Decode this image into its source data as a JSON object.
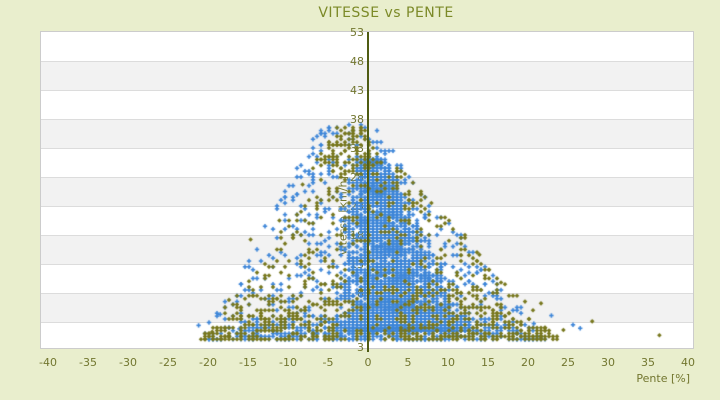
{
  "page": {
    "background_color": "#e9eecd"
  },
  "chart_data": {
    "type": "scatter",
    "title": "VITESSE vs PENTE",
    "xlabel": "Pente [%]",
    "ylabel": "Vitesse [km/h]",
    "legend": "none",
    "x_ticks": [
      -40,
      -35,
      -30,
      -25,
      -20,
      -15,
      -10,
      -5,
      0,
      5,
      10,
      15,
      20,
      25,
      30,
      35,
      40
    ],
    "y_ticks": [
      53,
      48,
      43,
      38,
      33,
      28,
      23,
      18,
      13,
      8,
      3
    ],
    "x_range": [
      -41,
      40.5
    ],
    "y_range": [
      -1.5,
      53
    ],
    "grid": {
      "band_colors": [
        "#ffffff",
        "#f2f2f2"
      ],
      "line_color": "#dcdcdc",
      "border_color": "#cccccc",
      "bottom_label_at_edge": true
    },
    "colors": {
      "title_text": "#7c8a28",
      "tick_text": "#72762f",
      "axis_title_text": "#72762f",
      "zero_line": "#4f5c13"
    },
    "series": [
      {
        "id": "serie-bleue",
        "color": "#3e86d8",
        "marker": "cross",
        "clusters": [
          {
            "count": 3200,
            "seed": 42,
            "y_min": 1.5,
            "y_max": 31,
            "y_pow": 1.9,
            "x_base": [
              -5,
              14
            ],
            "x_apex": [
              -2,
              2.5
            ],
            "x_mode": "center",
            "quantize": 0.5
          },
          {
            "count": 800,
            "seed": 7,
            "y_min": 0,
            "y_max": 37,
            "y_pow": 2.2,
            "x_base": [
              -21,
              22
            ],
            "x_apex": [
              -6,
              0.5
            ],
            "x_mode": "uniform",
            "quantize": 0.5
          },
          {
            "count": 300,
            "seed": 101,
            "y_min": 0,
            "y_max": 4,
            "y_pow": 1.0,
            "x_base": [
              -18,
              21
            ],
            "x_apex": [
              -14,
              16
            ],
            "x_mode": "uniform",
            "quantize": 0.5
          }
        ],
        "outliers": [
          [
            25.5,
            2.5
          ],
          [
            26.4,
            1.9
          ],
          [
            22.8,
            4.1
          ],
          [
            20.6,
            2.7
          ],
          [
            18.5,
            5.5
          ],
          [
            12.5,
            12.5
          ],
          [
            9.5,
            16
          ],
          [
            -21.3,
            2.4
          ],
          [
            -18.6,
            4.3
          ],
          [
            -16.2,
            1.8
          ],
          [
            -20,
            2.9
          ],
          [
            -13.5,
            8.5
          ]
        ]
      },
      {
        "id": "serie-olive",
        "color": "#77771d",
        "marker": "diamond",
        "clusters": [
          {
            "count": 700,
            "seed": 13,
            "y_min": 0,
            "y_max": 31,
            "y_pow": 2.1,
            "x_base": [
              -21,
              24
            ],
            "x_apex": [
              -4,
              3
            ],
            "x_mode": "uniform",
            "quantize": 0.5
          },
          {
            "count": 110,
            "seed": 29,
            "y_min": 29,
            "y_max": 36.5,
            "y_pow": 1.0,
            "x_base": [
              -7.5,
              1.5
            ],
            "x_apex": [
              -4,
              0
            ],
            "x_mode": "uniform",
            "quantize": 0.5
          },
          {
            "count": 220,
            "seed": 55,
            "y_min": 0,
            "y_max": 9,
            "y_pow": 1.6,
            "x_base": [
              4,
              25
            ],
            "x_apex": [
              2,
              12
            ],
            "x_mode": "uniform",
            "quantize": 0.5
          },
          {
            "count": 120,
            "seed": 77,
            "y_min": 0,
            "y_max": 7,
            "y_pow": 1.4,
            "x_base": [
              -22,
              -4
            ],
            "x_apex": [
              -12,
              -2
            ],
            "x_mode": "uniform",
            "quantize": 0.5
          }
        ],
        "outliers": [
          [
            36.3,
            0.7
          ],
          [
            24.3,
            1.6
          ],
          [
            27.9,
            3.1
          ],
          [
            21.5,
            6.2
          ],
          [
            16.5,
            9.8
          ],
          [
            13.8,
            14.6
          ],
          [
            7.8,
            23.5
          ],
          [
            -19.6,
            1.3
          ],
          [
            -17.5,
            6.8
          ],
          [
            -14.8,
            17.2
          ],
          [
            -11.2,
            20.5
          ],
          [
            -8.3,
            26.7
          ]
        ]
      }
    ]
  }
}
